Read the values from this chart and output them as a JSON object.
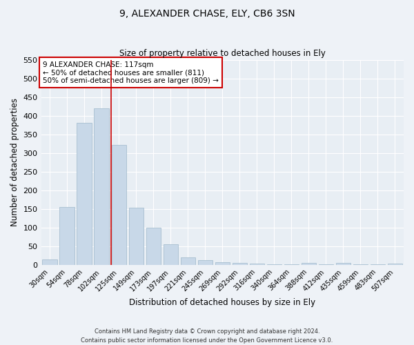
{
  "title": "9, ALEXANDER CHASE, ELY, CB6 3SN",
  "subtitle": "Size of property relative to detached houses in Ely",
  "xlabel": "Distribution of detached houses by size in Ely",
  "ylabel": "Number of detached properties",
  "bar_color": "#c8d8e8",
  "bar_edge_color": "#a8bfd0",
  "background_color": "#e8eef4",
  "grid_color": "#ffffff",
  "fig_background": "#eef2f7",
  "categories": [
    "30sqm",
    "54sqm",
    "78sqm",
    "102sqm",
    "125sqm",
    "149sqm",
    "173sqm",
    "197sqm",
    "221sqm",
    "245sqm",
    "269sqm",
    "292sqm",
    "316sqm",
    "340sqm",
    "364sqm",
    "388sqm",
    "412sqm",
    "435sqm",
    "459sqm",
    "483sqm",
    "507sqm"
  ],
  "values": [
    15,
    155,
    382,
    420,
    323,
    153,
    100,
    55,
    21,
    12,
    8,
    5,
    3,
    2,
    1,
    5,
    1,
    5,
    1,
    2,
    4
  ],
  "ylim": [
    0,
    550
  ],
  "yticks": [
    0,
    50,
    100,
    150,
    200,
    250,
    300,
    350,
    400,
    450,
    500,
    550
  ],
  "vline_color": "#cc0000",
  "annotation_text": "9 ALEXANDER CHASE: 117sqm\n← 50% of detached houses are smaller (811)\n50% of semi-detached houses are larger (809) →",
  "annotation_box_color": "#ffffff",
  "annotation_box_edge": "#cc0000",
  "footnote_line1": "Contains HM Land Registry data © Crown copyright and database right 2024.",
  "footnote_line2": "Contains public sector information licensed under the Open Government Licence v3.0."
}
